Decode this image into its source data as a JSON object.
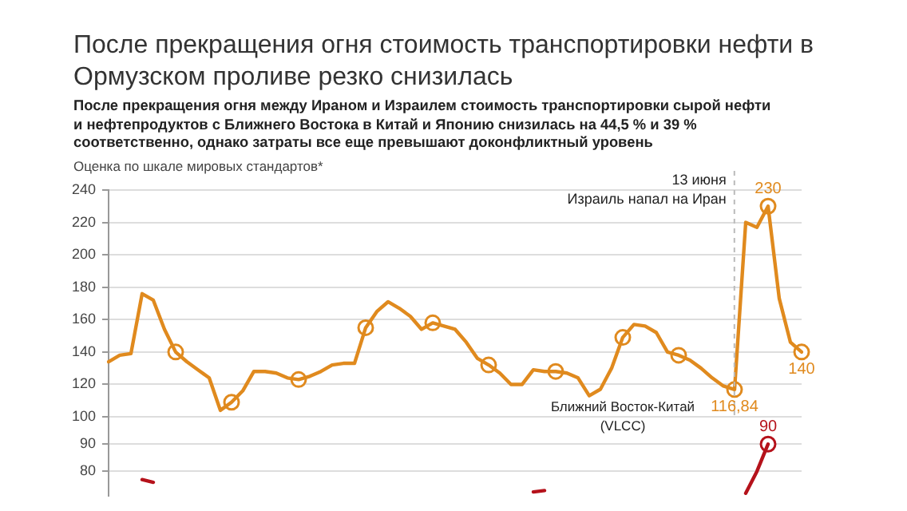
{
  "chart_data": [
    {
      "type": "line",
      "title": "После прекращения огня стоимость транспортировки нефти в Ормузском проливе резко снизилась",
      "subtitle": "После прекращения огня между Ираном и Израилем стоимость транспортировки сырой нефти и нефтепродуктов с Ближнего Востока в Китай и Японию снизилась на 44,5 % и 39 % соответственно, однако затраты все еще превышают доконфликтный уровень",
      "ylabel": "Оценка по шкале мировых стандартов*",
      "annotations": [
        "13 июня\nИзраиль напал на Иран"
      ],
      "categories": [
        null,
        null,
        null,
        null,
        null,
        null,
        null,
        null,
        null,
        null,
        null,
        null,
        null,
        null,
        null,
        null,
        null,
        null,
        null,
        null,
        null,
        null,
        null,
        null,
        null,
        null,
        null,
        null,
        null,
        null,
        null,
        null,
        null,
        null,
        null,
        null,
        null,
        null,
        null,
        null,
        null,
        null,
        null,
        null,
        null,
        null,
        null,
        null,
        null,
        null,
        null,
        null,
        null,
        null,
        null,
        null,
        null,
        null,
        null,
        null,
        null,
        null,
        null
      ],
      "ylim": [
        100,
        240
      ],
      "yticks": [
        100,
        120,
        140,
        160,
        180,
        200,
        220,
        240
      ],
      "grid": "y",
      "legend": false,
      "line_style": "solid",
      "series": [
        {
          "name": "Ближний Восток-Китай (VLCC)",
          "color": "#e08a1e",
          "marker": "none",
          "values": [
            134,
            138,
            139,
            176,
            172,
            154,
            140,
            134,
            129,
            124,
            104,
            109,
            116,
            128,
            128,
            127,
            124,
            123,
            125,
            128,
            132,
            133,
            133,
            155,
            165,
            171,
            167,
            162,
            154,
            158,
            156,
            154,
            146,
            136,
            132,
            127,
            120,
            120,
            129,
            128,
            128,
            127,
            124,
            113,
            117,
            130,
            149,
            157,
            156,
            152,
            140,
            138,
            135,
            130,
            124,
            119,
            116.84,
            220,
            217,
            230,
            173,
            146,
            140
          ],
          "value_labels": [
            null,
            null,
            null,
            null,
            null,
            null,
            null,
            null,
            null,
            null,
            null,
            null,
            null,
            null,
            null,
            null,
            null,
            null,
            null,
            null,
            null,
            null,
            null,
            null,
            null,
            null,
            null,
            null,
            null,
            null,
            null,
            null,
            null,
            null,
            null,
            null,
            null,
            null,
            null,
            null,
            null,
            null,
            null,
            null,
            null,
            null,
            null,
            null,
            null,
            null,
            null,
            null,
            null,
            null,
            null,
            null,
            "116,84",
            null,
            null,
            "230",
            null,
            null,
            "140"
          ]
        },
        {
          "type": "scatter",
          "color": "#e08a1e",
          "marker": "circle",
          "values": [
            null,
            null,
            null,
            null,
            null,
            null,
            140,
            null,
            null,
            null,
            null,
            109,
            null,
            null,
            null,
            null,
            null,
            123,
            null,
            null,
            null,
            null,
            null,
            155,
            null,
            null,
            null,
            null,
            null,
            158,
            null,
            null,
            null,
            null,
            132,
            null,
            null,
            null,
            null,
            null,
            128,
            null,
            null,
            null,
            null,
            null,
            149,
            null,
            null,
            null,
            null,
            138,
            null,
            null,
            null,
            null,
            116.84,
            null,
            null,
            230,
            null,
            null,
            140
          ]
        }
      ]
    },
    {
      "type": "line",
      "categories": [
        null,
        null,
        null,
        null,
        null,
        null,
        null,
        null,
        null,
        null,
        null,
        null,
        null,
        null,
        null,
        null,
        null,
        null,
        null,
        null,
        null,
        null,
        null,
        null,
        null,
        null,
        null,
        null,
        null,
        null,
        null,
        null,
        null,
        null,
        null,
        null,
        null,
        null,
        null,
        null,
        null,
        null,
        null,
        null,
        null,
        null,
        null,
        null,
        null,
        null,
        null,
        null,
        null,
        null,
        null,
        null,
        null,
        null,
        null,
        null,
        null,
        null,
        null
      ],
      "ylim": [
        71,
        100
      ],
      "yticks": [
        80,
        90
      ],
      "grid": "y",
      "legend": false,
      "line_style": "solid",
      "series": [
        {
          "color": "#b5121b",
          "marker": "none",
          "values": [
            null,
            null,
            null,
            77,
            76,
            null,
            null,
            null,
            null,
            null,
            null,
            null,
            null,
            null,
            null,
            null,
            null,
            null,
            null,
            null,
            null,
            null,
            null,
            null,
            null,
            null,
            null,
            null,
            null,
            null,
            null,
            null,
            null,
            null,
            null,
            null,
            null,
            null,
            72.5,
            73,
            null,
            null,
            null,
            null,
            null,
            null,
            null,
            null,
            null,
            null,
            null,
            null,
            null,
            null,
            null,
            null,
            null,
            72,
            80,
            90,
            null,
            null,
            null
          ],
          "value_labels": [
            null,
            null,
            null,
            null,
            null,
            null,
            null,
            null,
            null,
            null,
            null,
            null,
            null,
            null,
            null,
            null,
            null,
            null,
            null,
            null,
            null,
            null,
            null,
            null,
            null,
            null,
            null,
            null,
            null,
            null,
            null,
            null,
            null,
            null,
            null,
            null,
            null,
            null,
            null,
            null,
            null,
            null,
            null,
            null,
            null,
            null,
            null,
            null,
            null,
            null,
            null,
            null,
            null,
            null,
            null,
            null,
            null,
            null,
            null,
            "90",
            null,
            null,
            null
          ]
        },
        {
          "type": "scatter",
          "color": "#b5121b",
          "marker": "circle",
          "values": [
            null,
            null,
            null,
            null,
            null,
            null,
            null,
            null,
            null,
            null,
            null,
            null,
            null,
            null,
            null,
            null,
            null,
            null,
            null,
            null,
            null,
            null,
            null,
            null,
            null,
            null,
            null,
            null,
            null,
            null,
            null,
            null,
            null,
            null,
            null,
            null,
            null,
            null,
            null,
            null,
            null,
            null,
            null,
            null,
            null,
            null,
            null,
            null,
            null,
            null,
            null,
            null,
            null,
            null,
            null,
            null,
            null,
            null,
            null,
            90,
            null,
            null,
            null
          ]
        }
      ]
    }
  ]
}
